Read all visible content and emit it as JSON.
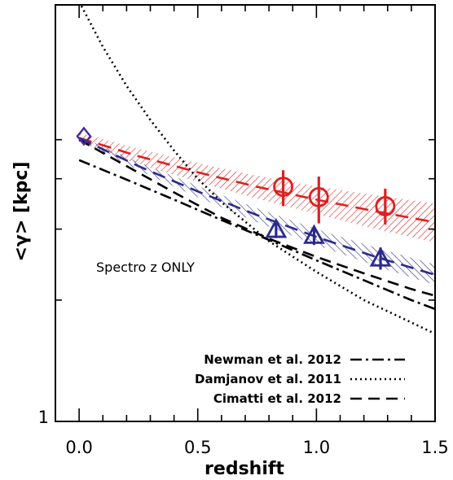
{
  "chart_data": {
    "type": "line",
    "xlabel": "redshift",
    "ylabel": "<γ> [kpc]",
    "xlim": [
      -0.1,
      1.5
    ],
    "ylim": [
      1,
      10.8
    ],
    "yscale": "log",
    "x_ticks": [
      0.0,
      0.5,
      1.0,
      1.5
    ],
    "x_tick_labels": [
      "0.0",
      "0.5",
      "1.0",
      "1.5"
    ],
    "y_tick_labels": [
      {
        "value": 1,
        "label": "1"
      }
    ],
    "y_minor_ticks": [
      2,
      3,
      4,
      5
    ],
    "annotation": "Spectro z ONLY",
    "series": [
      {
        "name": "Newman et al. 2012",
        "style": "dash-dot",
        "color": "#000000",
        "x": [
          0.0,
          0.2,
          0.4,
          0.6,
          0.8,
          1.0,
          1.2,
          1.4,
          1.5
        ],
        "y": [
          4.45,
          3.98,
          3.55,
          3.16,
          2.82,
          2.51,
          2.24,
          2.0,
          1.9
        ]
      },
      {
        "name": "Damjanov et al. 2011",
        "style": "dotted",
        "color": "#000000",
        "x": [
          0.0,
          0.1,
          0.2,
          0.3,
          0.4,
          0.5,
          0.6,
          0.8,
          1.0,
          1.2,
          1.4,
          1.5
        ],
        "y": [
          11.0,
          8.5,
          6.8,
          5.6,
          4.7,
          4.0,
          3.5,
          2.8,
          2.35,
          2.0,
          1.76,
          1.65
        ]
      },
      {
        "name": "Cimatti et al. 2012",
        "style": "dashed",
        "color": "#000000",
        "x": [
          0.0,
          0.2,
          0.4,
          0.6,
          0.8,
          1.0,
          1.2,
          1.4,
          1.5
        ],
        "y": [
          5.0,
          4.3,
          3.7,
          3.2,
          2.84,
          2.56,
          2.33,
          2.13,
          2.05
        ]
      },
      {
        "name": "",
        "style": "dashed-band",
        "color": "#dd2020",
        "x": [
          0.0,
          0.25,
          0.5,
          0.75,
          1.0,
          1.25,
          1.5
        ],
        "y": [
          5.05,
          4.55,
          4.15,
          3.82,
          3.55,
          3.32,
          3.12
        ],
        "band_lower": [
          4.9,
          4.35,
          3.93,
          3.57,
          3.27,
          3.0,
          2.78
        ],
        "band_upper": [
          5.2,
          4.75,
          4.37,
          4.07,
          3.83,
          3.64,
          3.47
        ]
      },
      {
        "name": "",
        "style": "dashed-band",
        "color": "#2b2b8c",
        "x": [
          0.0,
          0.25,
          0.5,
          0.75,
          1.0,
          1.25,
          1.5
        ],
        "y": [
          5.05,
          4.3,
          3.72,
          3.25,
          2.87,
          2.56,
          2.31
        ],
        "band_lower": [
          5.0,
          4.2,
          3.6,
          3.12,
          2.74,
          2.43,
          2.18
        ],
        "band_upper": [
          5.1,
          4.4,
          3.84,
          3.38,
          3.0,
          2.7,
          2.45
        ]
      }
    ],
    "points": [
      {
        "marker": "circle",
        "color": "#dd2020",
        "x": 0.86,
        "y": 3.82,
        "yerr_low": 3.42,
        "yerr_high": 4.2
      },
      {
        "marker": "circle",
        "color": "#dd2020",
        "x": 1.01,
        "y": 3.6,
        "yerr_low": 3.1,
        "yerr_high": 4.05
      },
      {
        "marker": "circle",
        "color": "#dd2020",
        "x": 1.29,
        "y": 3.42,
        "yerr_low": 3.08,
        "yerr_high": 3.78
      },
      {
        "marker": "triangle",
        "color": "#2b2b8c",
        "x": 0.83,
        "y": 2.98,
        "yerr_low": 2.85,
        "yerr_high": 3.12
      },
      {
        "marker": "triangle",
        "color": "#2b2b8c",
        "x": 0.99,
        "y": 2.88,
        "yerr_low": 2.74,
        "yerr_high": 3.03
      },
      {
        "marker": "triangle",
        "color": "#2b2b8c",
        "x": 1.27,
        "y": 2.53,
        "yerr_low": 2.38,
        "yerr_high": 2.7
      },
      {
        "marker": "diamond",
        "color": "#4a2a9a",
        "x": 0.02,
        "y": 5.1
      }
    ],
    "legend": {
      "position": "bottom-right",
      "entries": [
        {
          "label": "Newman et al. 2012",
          "style": "dash-dot"
        },
        {
          "label": "Damjanov et al. 2011",
          "style": "dotted"
        },
        {
          "label": "Cimatti et al. 2012",
          "style": "dashed"
        }
      ]
    }
  }
}
